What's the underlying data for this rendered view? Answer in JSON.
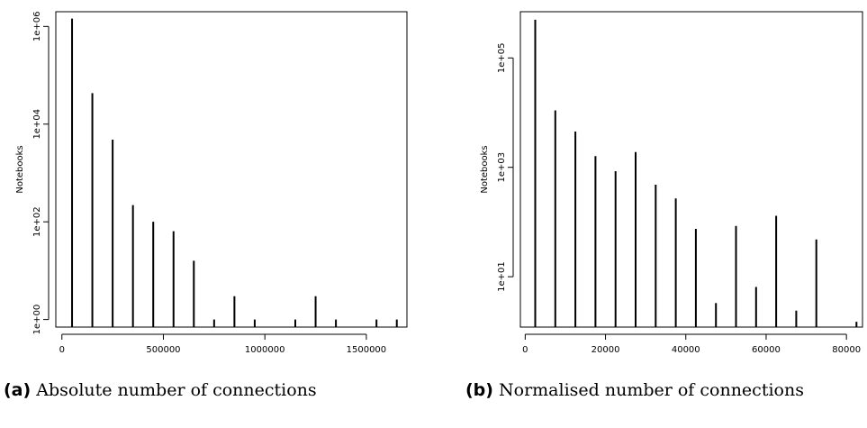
{
  "chart_data": [
    {
      "type": "bar",
      "ylabel": "Notebooks",
      "xlabel": "",
      "y_scale": "log",
      "xlim": [
        -30000,
        1700000
      ],
      "ylim": [
        0.7,
        2000000
      ],
      "x_ticks": [
        0,
        500000,
        1000000,
        1500000
      ],
      "x_tick_labels": [
        "0",
        "500000",
        "1000000",
        "1500000"
      ],
      "y_ticks": [
        1,
        100,
        10000,
        1000000
      ],
      "y_tick_labels": [
        "1e+00",
        "1e+02",
        "1e+04",
        "1e+06"
      ],
      "x": [
        50000,
        150000,
        250000,
        350000,
        450000,
        550000,
        650000,
        750000,
        850000,
        950000,
        1150000,
        1250000,
        1350000,
        1550000,
        1650000
      ],
      "values": [
        1450000,
        43000,
        4800,
        220,
        100,
        64,
        16,
        1,
        3,
        1,
        1,
        3,
        1,
        1,
        1
      ]
    },
    {
      "type": "bar",
      "ylabel": "Notebooks",
      "xlabel": "",
      "y_scale": "log",
      "xlim": [
        -1200,
        84000
      ],
      "ylim": [
        1.2,
        700000
      ],
      "x_ticks": [
        0,
        20000,
        40000,
        60000,
        80000
      ],
      "x_tick_labels": [
        "0",
        "20000",
        "40000",
        "60000",
        "80000"
      ],
      "y_ticks": [
        10,
        1000,
        100000
      ],
      "y_tick_labels": [
        "1e+01",
        "1e+03",
        "1e+05"
      ],
      "x": [
        2500,
        7500,
        12500,
        17500,
        22500,
        27500,
        32500,
        37500,
        42500,
        47500,
        52500,
        57500,
        62500,
        67500,
        72500,
        82500
      ],
      "values": [
        500000,
        11000,
        4500,
        1600,
        850,
        1900,
        480,
        270,
        75,
        3.3,
        85,
        6.5,
        130,
        2.4,
        48,
        1.5
      ]
    }
  ],
  "captions": [
    {
      "label": "(a)",
      "text": " Absolute number of connections"
    },
    {
      "label": "(b)",
      "text": " Normalised number of connections"
    }
  ]
}
